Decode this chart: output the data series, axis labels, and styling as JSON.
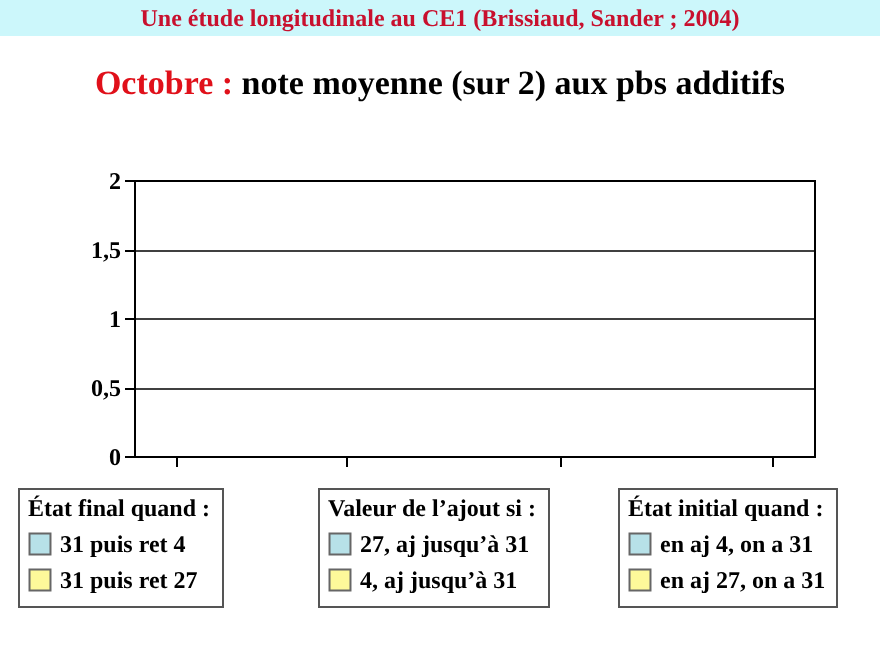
{
  "chart_data": {
    "type": "bar",
    "title": "Octobre : note moyenne (sur 2) aux pbs additifs",
    "annotations": [
      "Une étude longitudinale au CE1 (Brissiaud, Sander ; 2004)"
    ],
    "legend_title": [
      "État final quand :",
      "Valeur de l’ajout si :",
      "État initial quand :"
    ],
    "categories": [
      null,
      null,
      null
    ],
    "series": [
      {
        "name": "31 puis ret 4",
        "color": "#b7e1e8",
        "values": [
          null,
          null,
          null
        ]
      },
      {
        "name": "31 puis ret 27",
        "color": "#fdf99a",
        "values": [
          null,
          null,
          null
        ]
      },
      {
        "name": "27, aj  jusqu’à 31",
        "color": "#b7e1e8",
        "values": [
          null,
          null,
          null
        ]
      },
      {
        "name": "4, aj  jusqu’à 31",
        "color": "#fdf99a",
        "values": [
          null,
          null,
          null
        ]
      },
      {
        "name": "en aj  4, on a 31",
        "color": "#b7e1e8",
        "values": [
          null,
          null,
          null
        ]
      },
      {
        "name": "en aj 27, on a 31",
        "color": "#fdf99a",
        "values": [
          null,
          null,
          null
        ]
      }
    ],
    "ylim": [
      0,
      2
    ],
    "yticks": [
      0,
      {
        "value": 0.5,
        "label": "0,5"
      },
      1,
      {
        "value": 1.5,
        "label": "1,5"
      },
      2
    ],
    "grid": "y",
    "legend": "bottom"
  }
}
